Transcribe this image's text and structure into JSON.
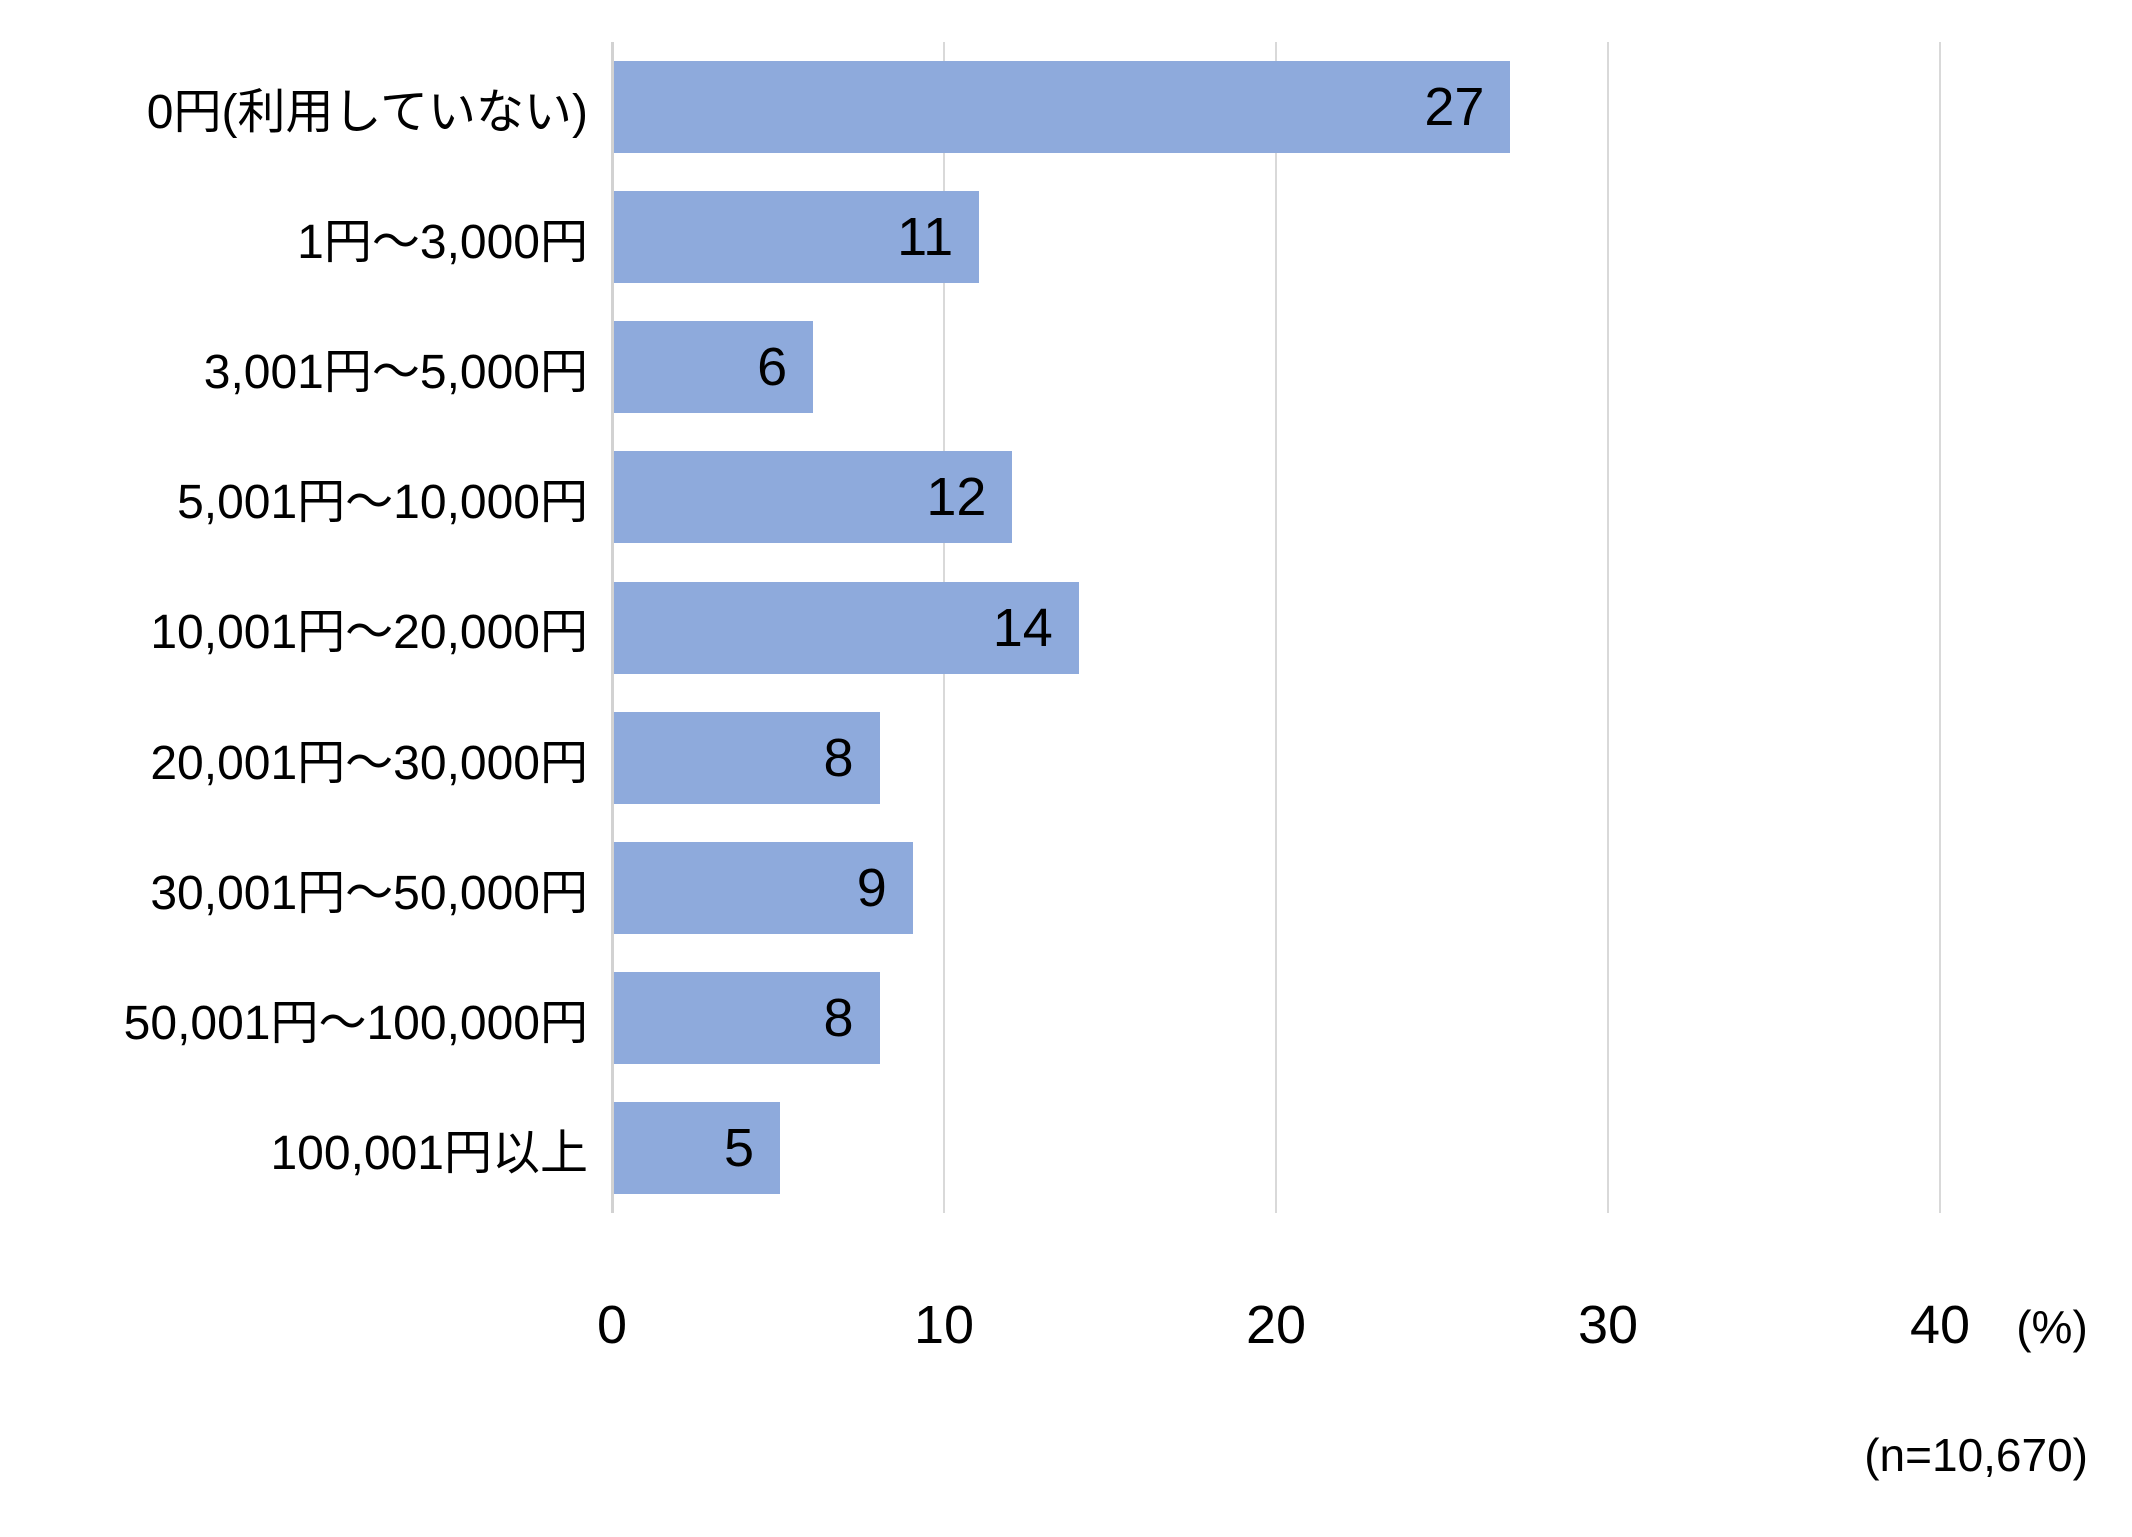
{
  "chart_data": {
    "type": "bar",
    "orientation": "horizontal",
    "title": "",
    "xlabel": "(%)",
    "ylabel": "",
    "categories": [
      "0円(利用していない)",
      "1円～3,000円",
      "3,001円～5,000円",
      "5,001円～10,000円",
      "10,001円～20,000円",
      "20,001円～30,000円",
      "30,001円～50,000円",
      "50,001円～100,000円",
      "100,001円以上"
    ],
    "values": [
      27,
      11,
      6,
      12,
      14,
      8,
      9,
      8,
      5
    ],
    "xlim": [
      0,
      40
    ],
    "x_ticks": [
      0,
      10,
      20,
      30,
      40
    ],
    "grid": true,
    "legend": false,
    "data_label_position": "inside-end",
    "sample_note": "(n=10,670)",
    "colors": {
      "bar": "#8eaadc",
      "gridline": "#d9d9d9",
      "axis_line": "#d2d2d2",
      "text": "#000000"
    }
  }
}
